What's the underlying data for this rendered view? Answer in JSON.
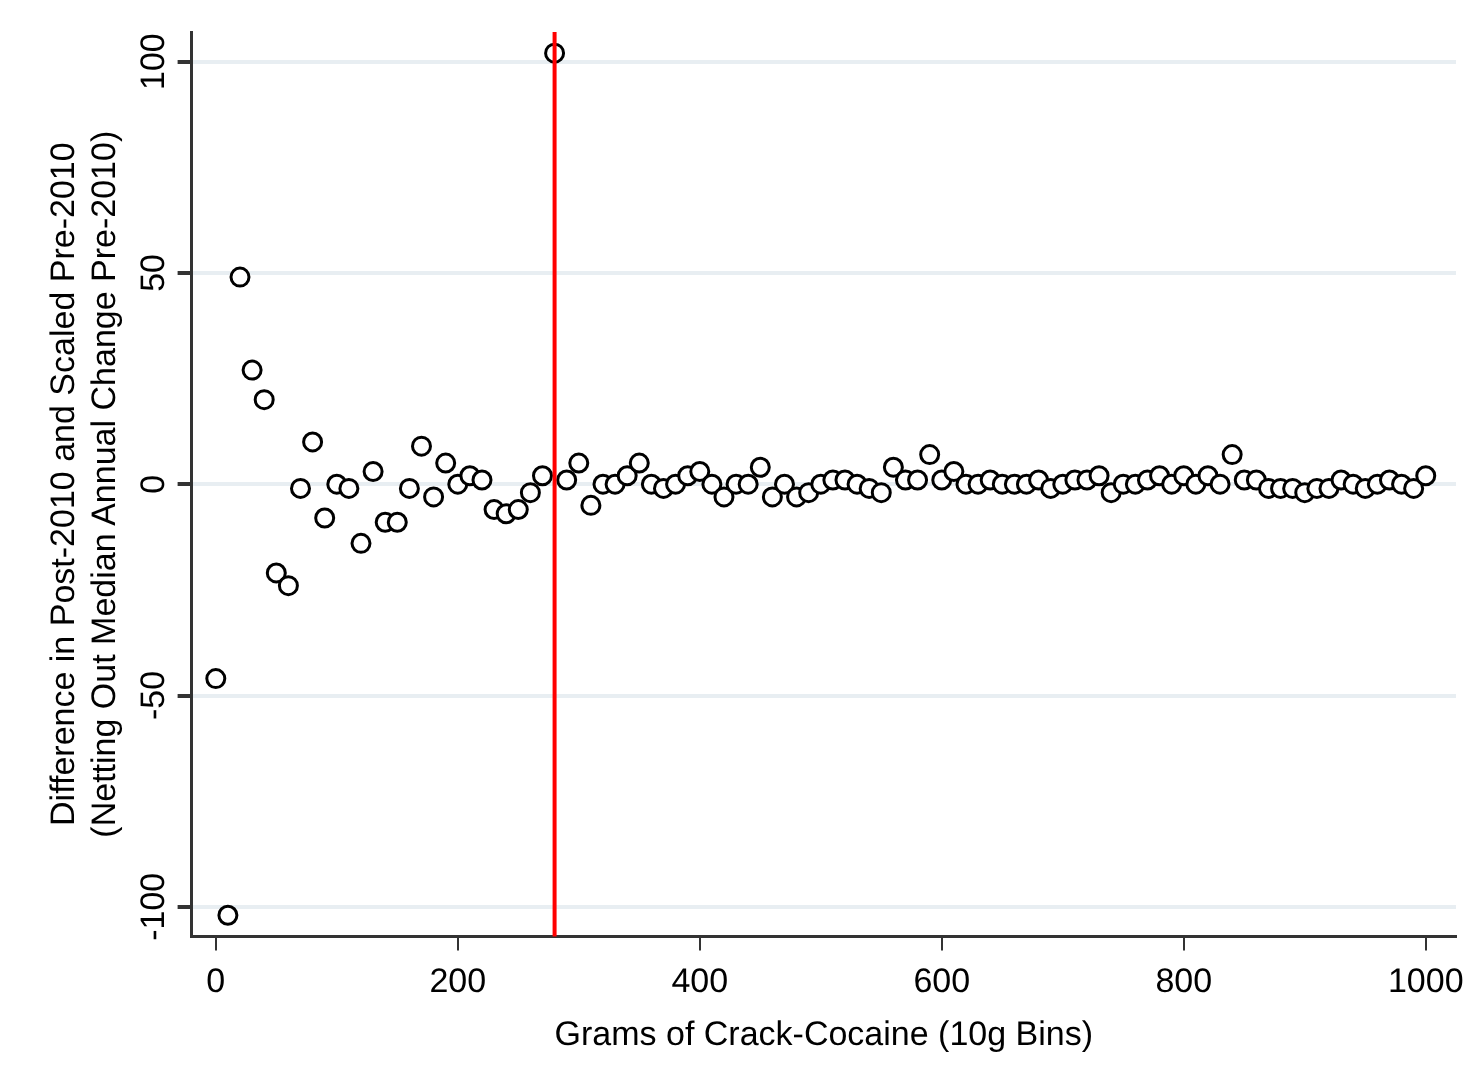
{
  "chart_data": {
    "type": "scatter",
    "xlabel": "Grams of Crack-Cocaine (10g Bins)",
    "ylabel": "Difference in Post-2010 and Scaled Pre-2010\n(Netting Out Median Annual Change Pre-2010)",
    "x": [
      0,
      10,
      20,
      30,
      40,
      50,
      60,
      70,
      80,
      90,
      100,
      110,
      120,
      130,
      140,
      150,
      160,
      170,
      180,
      190,
      200,
      210,
      220,
      230,
      240,
      250,
      260,
      270,
      280,
      290,
      300,
      310,
      320,
      330,
      340,
      350,
      360,
      370,
      380,
      390,
      400,
      410,
      420,
      430,
      440,
      450,
      460,
      470,
      480,
      490,
      500,
      510,
      520,
      530,
      540,
      550,
      560,
      570,
      580,
      590,
      600,
      610,
      620,
      630,
      640,
      650,
      660,
      670,
      680,
      690,
      700,
      710,
      720,
      730,
      740,
      750,
      760,
      770,
      780,
      790,
      800,
      810,
      820,
      830,
      840,
      850,
      860,
      870,
      880,
      890,
      900,
      910,
      920,
      930,
      940,
      950,
      960,
      970,
      980,
      990,
      1000
    ],
    "series": [
      {
        "color": "#000000",
        "values": [
          -46,
          -102,
          49,
          27,
          20,
          -21,
          -24,
          -1,
          10,
          -8,
          0,
          -1,
          -14,
          3,
          -9,
          -9,
          -1,
          9,
          -3,
          5,
          0,
          2,
          1,
          -6,
          -7,
          -6,
          -2,
          2,
          102,
          1,
          5,
          -5,
          0,
          0,
          2,
          5,
          0,
          -1,
          0,
          2,
          3,
          0,
          -3,
          0,
          0,
          4,
          -3,
          0,
          -3,
          -2,
          0,
          1,
          1,
          0,
          -1,
          -2,
          4,
          1,
          1,
          7,
          1,
          3,
          0,
          0,
          1,
          0,
          0,
          0,
          1,
          -1,
          0,
          1,
          1,
          2,
          -2,
          0,
          0,
          1,
          2,
          0,
          2,
          0,
          2,
          0,
          7,
          1,
          1,
          -1,
          -1,
          -1,
          -2,
          -1,
          -1,
          1,
          0,
          -1,
          0,
          1,
          0,
          -1,
          2
        ]
      }
    ],
    "xlim": [
      -20,
      1025
    ],
    "ylim": [
      -107,
      107
    ],
    "xticks": [
      0,
      200,
      400,
      600,
      800,
      {
        "value": 1000,
        "label": "1000"
      }
    ],
    "yticks": [
      -100,
      -50,
      0,
      50,
      100
    ],
    "grid": "y",
    "marker": "circle",
    "legend": false,
    "ref_lines": [
      {
        "axis": "x",
        "value": 280,
        "color": "#ff0000"
      }
    ]
  }
}
